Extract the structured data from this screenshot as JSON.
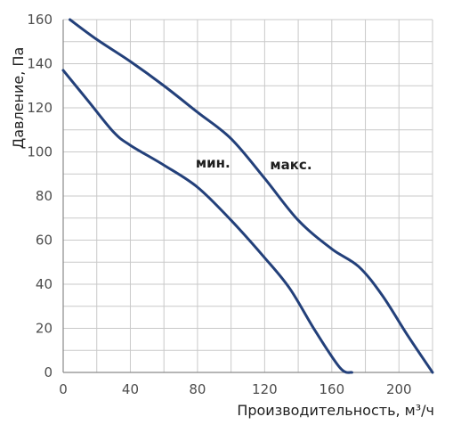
{
  "chart_data": {
    "type": "line",
    "xlabel": "Производительность, м³/ч",
    "ylabel": "Давление, Па",
    "xlim": [
      0,
      220
    ],
    "ylim": [
      0,
      160
    ],
    "x_ticks": [
      0,
      40,
      80,
      120,
      160,
      200
    ],
    "y_ticks": [
      0,
      20,
      40,
      60,
      80,
      100,
      120,
      140,
      160
    ],
    "grid": true,
    "legend": "none",
    "line_color": "#23407a",
    "series": [
      {
        "name": "макс.",
        "x": [
          4,
          20,
          40,
          60,
          80,
          100,
          120,
          140,
          160,
          176,
          190,
          205,
          220
        ],
        "y": [
          160,
          151,
          141,
          130,
          118,
          106,
          88,
          69,
          56,
          48,
          35,
          17,
          0
        ]
      },
      {
        "name": "мин.",
        "x": [
          0,
          15,
          30,
          40,
          60,
          80,
          100,
          120,
          135,
          150,
          165,
          172
        ],
        "y": [
          137,
          123,
          109,
          103,
          94,
          84,
          69,
          52,
          38,
          19,
          2,
          0
        ]
      }
    ]
  }
}
